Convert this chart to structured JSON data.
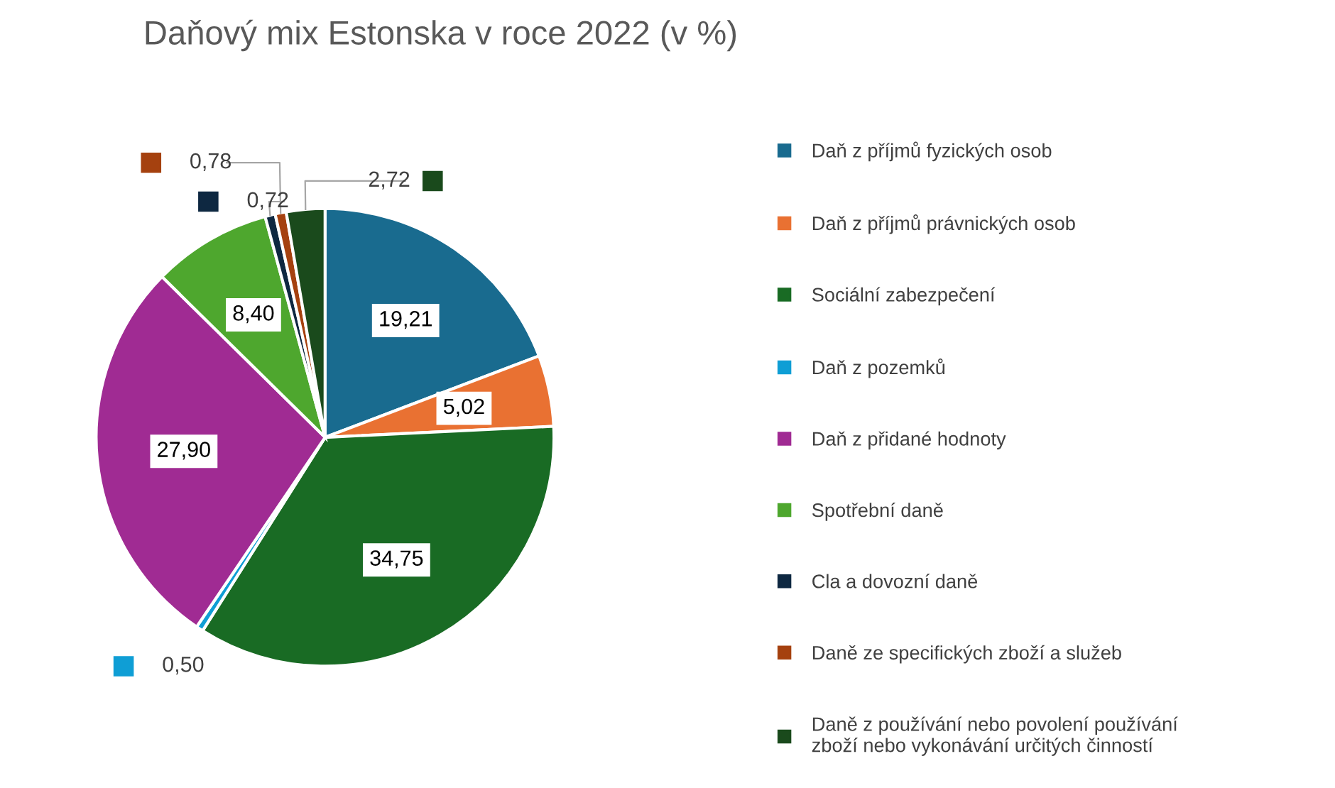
{
  "chart_data": {
    "type": "pie",
    "title": "Daňový mix Estonska v roce 2022 (v %)",
    "categories": [
      "Daň z příjmů fyzických osob",
      "Daň z příjmů právnických osob",
      "Sociální zabezpečení",
      "Daň z pozemků",
      "Daň z přidané hodnoty",
      "Spotřební daně",
      "Cla a dovozní daně",
      "Daně ze specifických zboží a služeb",
      "Daně z používání nebo povolení používání zboží nebo vykonávání určitých činností"
    ],
    "values": [
      19.21,
      5.02,
      34.75,
      0.5,
      27.9,
      8.4,
      0.72,
      0.78,
      2.72
    ],
    "colors": [
      "#196b8f",
      "#e97132",
      "#196b24",
      "#0f9ed5",
      "#a02b93",
      "#4ea72e",
      "#0e2841",
      "#a5410f",
      "#1a4a1c"
    ],
    "value_labels": [
      "19,21",
      "5,02",
      "34,75",
      "0,50",
      "27,90",
      "8,40",
      "0,72",
      "0,78",
      "2,72"
    ],
    "legend": "right"
  }
}
